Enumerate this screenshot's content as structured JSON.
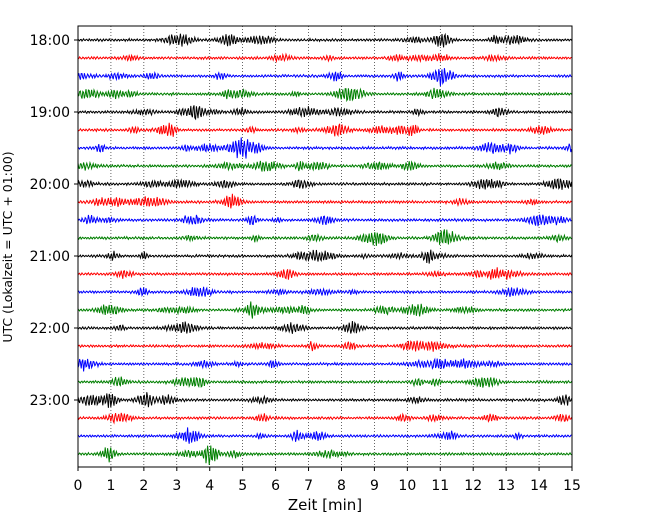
{
  "chart_data": {
    "type": "line",
    "title": "",
    "xlabel": "Zeit  [min]",
    "ylabel": "UTC (Lokalzeit = UTC + 01:00)",
    "xlim": [
      0,
      15
    ],
    "x_ticks": [
      "0",
      "1",
      "2",
      "3",
      "4",
      "5",
      "6",
      "7",
      "8",
      "9",
      "10",
      "11",
      "12",
      "13",
      "14",
      "15"
    ],
    "y_ticks": [
      "18:00",
      "19:00",
      "20:00",
      "21:00",
      "22:00",
      "23:00"
    ],
    "grid": "vertical dotted",
    "legend": "none",
    "trace_interval_min": 15,
    "first_trace": "18:00",
    "trace_count": 24,
    "colors_cycle": [
      "#000000",
      "#ff0000",
      "#0000ff",
      "#007f00"
    ]
  }
}
